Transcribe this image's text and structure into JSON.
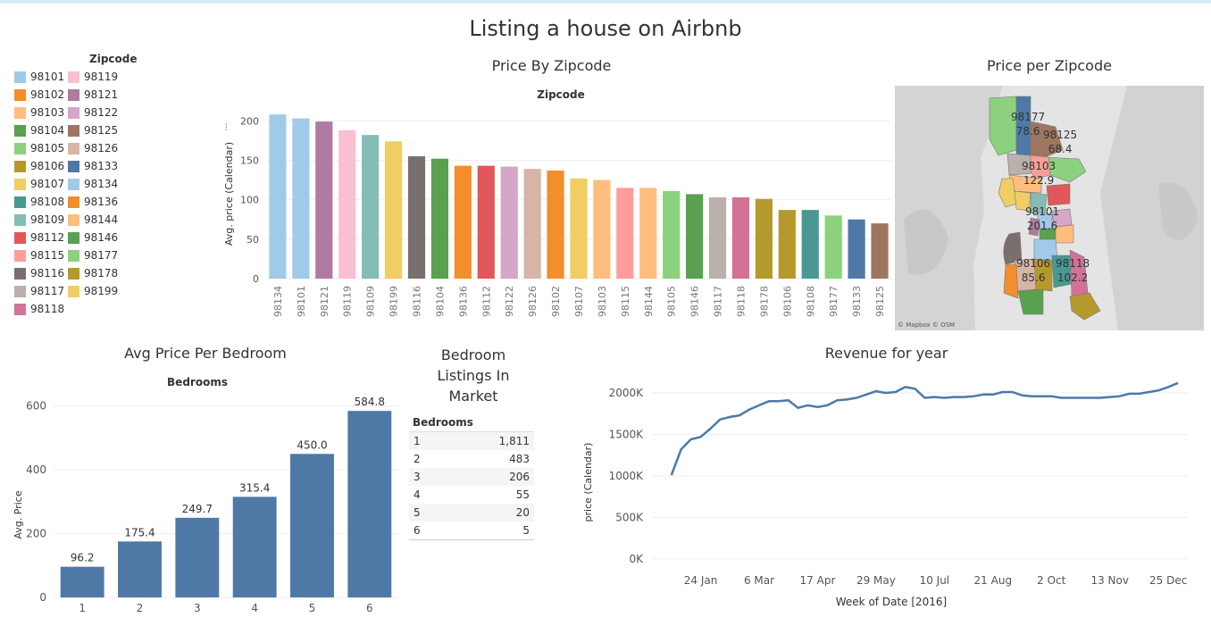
{
  "page": {
    "title": "Listing a house on Airbnb"
  },
  "legend": {
    "title": "Zipcode",
    "items": [
      {
        "label": "98101",
        "color": "#a0cbe8"
      },
      {
        "label": "98102",
        "color": "#f28e2b"
      },
      {
        "label": "98103",
        "color": "#ffbe7d"
      },
      {
        "label": "98104",
        "color": "#59a14f"
      },
      {
        "label": "98105",
        "color": "#8cd17d"
      },
      {
        "label": "98106",
        "color": "#b6992d"
      },
      {
        "label": "98107",
        "color": "#f1ce63"
      },
      {
        "label": "98108",
        "color": "#499894"
      },
      {
        "label": "98109",
        "color": "#86bcb6"
      },
      {
        "label": "98112",
        "color": "#e15759"
      },
      {
        "label": "98115",
        "color": "#ff9d9a"
      },
      {
        "label": "98116",
        "color": "#79706e"
      },
      {
        "label": "98117",
        "color": "#bab0ac"
      },
      {
        "label": "98118",
        "color": "#d37295"
      },
      {
        "label": "98119",
        "color": "#fabfd2"
      },
      {
        "label": "98121",
        "color": "#b07aa1"
      },
      {
        "label": "98122",
        "color": "#d4a6c8"
      },
      {
        "label": "98125",
        "color": "#9d7660"
      },
      {
        "label": "98126",
        "color": "#d7b5a6"
      },
      {
        "label": "98133",
        "color": "#4e79a7"
      },
      {
        "label": "98134",
        "color": "#a0cbe8"
      },
      {
        "label": "98136",
        "color": "#f28e2b"
      },
      {
        "label": "98144",
        "color": "#ffbe7d"
      },
      {
        "label": "98146",
        "color": "#59a14f"
      },
      {
        "label": "98177",
        "color": "#8cd17d"
      },
      {
        "label": "98178",
        "color": "#b6992d"
      },
      {
        "label": "98199",
        "color": "#f1ce63"
      }
    ]
  },
  "zip_chart_title": "Price By Zipcode",
  "map": {
    "title": "Price per Zipcode",
    "attribution": "© Mapbox © OSM",
    "labels": [
      {
        "zip": "98177",
        "value": "78.6"
      },
      {
        "zip": "98125",
        "value": "68.4"
      },
      {
        "zip": "98103",
        "value": "122.9"
      },
      {
        "zip": "98101",
        "value": "201.6"
      },
      {
        "zip": "98106",
        "value": "85.6"
      },
      {
        "zip": "98118",
        "value": "102.2"
      }
    ]
  },
  "bedroom_chart_title": "Avg Price Per Bedroom",
  "listings": {
    "title_lines": [
      "Bedroom",
      "Listings In",
      "Market"
    ],
    "header": "Bedrooms",
    "rows": [
      {
        "bedrooms": "1",
        "count": "1,811"
      },
      {
        "bedrooms": "2",
        "count": "483"
      },
      {
        "bedrooms": "3",
        "count": "206"
      },
      {
        "bedrooms": "4",
        "count": "55"
      },
      {
        "bedrooms": "5",
        "count": "20"
      },
      {
        "bedrooms": "6",
        "count": "5"
      }
    ]
  },
  "revenue_chart_title": "Revenue for year",
  "chart_data": [
    {
      "type": "bar",
      "title": "Zipcode",
      "ylabel": "Avg. price (Calendar)",
      "ylim": [
        0,
        215
      ],
      "yticks": [
        0,
        50,
        100,
        150,
        200
      ],
      "categories": [
        "98134",
        "98101",
        "98121",
        "98119",
        "98109",
        "98199",
        "98116",
        "98104",
        "98136",
        "98112",
        "98122",
        "98126",
        "98102",
        "98107",
        "98103",
        "98115",
        "98144",
        "98105",
        "98146",
        "98117",
        "98118",
        "98178",
        "98106",
        "98108",
        "98177",
        "98133",
        "98125"
      ],
      "values": [
        208,
        203,
        199,
        188,
        182,
        174,
        155,
        152,
        143,
        143,
        142,
        139,
        137,
        127,
        125,
        115,
        115,
        111,
        107,
        103,
        103,
        101,
        87,
        87,
        80,
        75,
        70
      ],
      "colors": [
        "#a0cbe8",
        "#a0cbe8",
        "#b07aa1",
        "#fabfd2",
        "#86bcb6",
        "#f1ce63",
        "#79706e",
        "#59a14f",
        "#f28e2b",
        "#e15759",
        "#d4a6c8",
        "#d7b5a6",
        "#f28e2b",
        "#f1ce63",
        "#ffbe7d",
        "#ff9d9a",
        "#ffbe7d",
        "#8cd17d",
        "#59a14f",
        "#bab0ac",
        "#d37295",
        "#b6992d",
        "#b6992d",
        "#499894",
        "#8cd17d",
        "#4e79a7",
        "#9d7660"
      ]
    },
    {
      "type": "bar",
      "title": "Bedrooms",
      "ylabel": "Avg. Price",
      "ylim": [
        0,
        630
      ],
      "yticks": [
        0,
        200,
        400,
        600
      ],
      "categories": [
        "1",
        "2",
        "3",
        "4",
        "5",
        "6"
      ],
      "values": [
        96.2,
        175.4,
        249.7,
        315.4,
        450.0,
        584.8
      ],
      "value_labels": [
        "96.2",
        "175.4",
        "249.7",
        "315.4",
        "450.0",
        "584.8"
      ],
      "color": "#4e79a7"
    },
    {
      "type": "line",
      "title": "",
      "xlabel": "Week of Date [2016]",
      "ylabel": "price (Calendar)",
      "ylim": [
        0,
        2150000
      ],
      "yticks": [
        0,
        500000,
        1000000,
        1500000,
        2000000
      ],
      "ytick_labels": [
        "0K",
        "500K",
        "1000K",
        "1500K",
        "2000K"
      ],
      "xticks": [
        "2016-01-24",
        "2016-03-06",
        "2016-04-17",
        "2016-05-29",
        "2016-07-10",
        "2016-08-21",
        "2016-10-02",
        "2016-11-13",
        "2016-12-25"
      ],
      "xtick_labels": [
        "24 Jan",
        "6 Mar",
        "17 Apr",
        "29 May",
        "10 Jul",
        "21 Aug",
        "2 Oct",
        "13 Nov",
        "25 Dec"
      ],
      "color": "#4e79a7",
      "series": [
        {
          "x": [
            "2016-01-03",
            "2016-01-10",
            "2016-01-17",
            "2016-01-24",
            "2016-01-31",
            "2016-02-07",
            "2016-02-14",
            "2016-02-21",
            "2016-02-28",
            "2016-03-06",
            "2016-03-13",
            "2016-03-20",
            "2016-03-27",
            "2016-04-03",
            "2016-04-10",
            "2016-04-17",
            "2016-04-24",
            "2016-05-01",
            "2016-05-08",
            "2016-05-15",
            "2016-05-22",
            "2016-05-29",
            "2016-06-05",
            "2016-06-12",
            "2016-06-19",
            "2016-06-26",
            "2016-07-03",
            "2016-07-10",
            "2016-07-17",
            "2016-07-24",
            "2016-07-31",
            "2016-08-07",
            "2016-08-14",
            "2016-08-21",
            "2016-08-28",
            "2016-09-04",
            "2016-09-11",
            "2016-09-18",
            "2016-09-25",
            "2016-10-02",
            "2016-10-09",
            "2016-10-16",
            "2016-10-23",
            "2016-10-30",
            "2016-11-06",
            "2016-11-13",
            "2016-11-20",
            "2016-11-27",
            "2016-12-04",
            "2016-12-11",
            "2016-12-18",
            "2016-12-25",
            "2017-01-01"
          ],
          "values": [
            1010000,
            1320000,
            1440000,
            1470000,
            1570000,
            1680000,
            1710000,
            1730000,
            1800000,
            1850000,
            1900000,
            1900000,
            1910000,
            1820000,
            1850000,
            1830000,
            1850000,
            1910000,
            1920000,
            1940000,
            1980000,
            2020000,
            2000000,
            2010000,
            2070000,
            2050000,
            1940000,
            1950000,
            1940000,
            1950000,
            1950000,
            1960000,
            1980000,
            1980000,
            2010000,
            2010000,
            1970000,
            1960000,
            1960000,
            1960000,
            1940000,
            1940000,
            1940000,
            1940000,
            1940000,
            1950000,
            1960000,
            1990000,
            1990000,
            2010000,
            2030000,
            2070000,
            2120000
          ]
        }
      ]
    }
  ]
}
